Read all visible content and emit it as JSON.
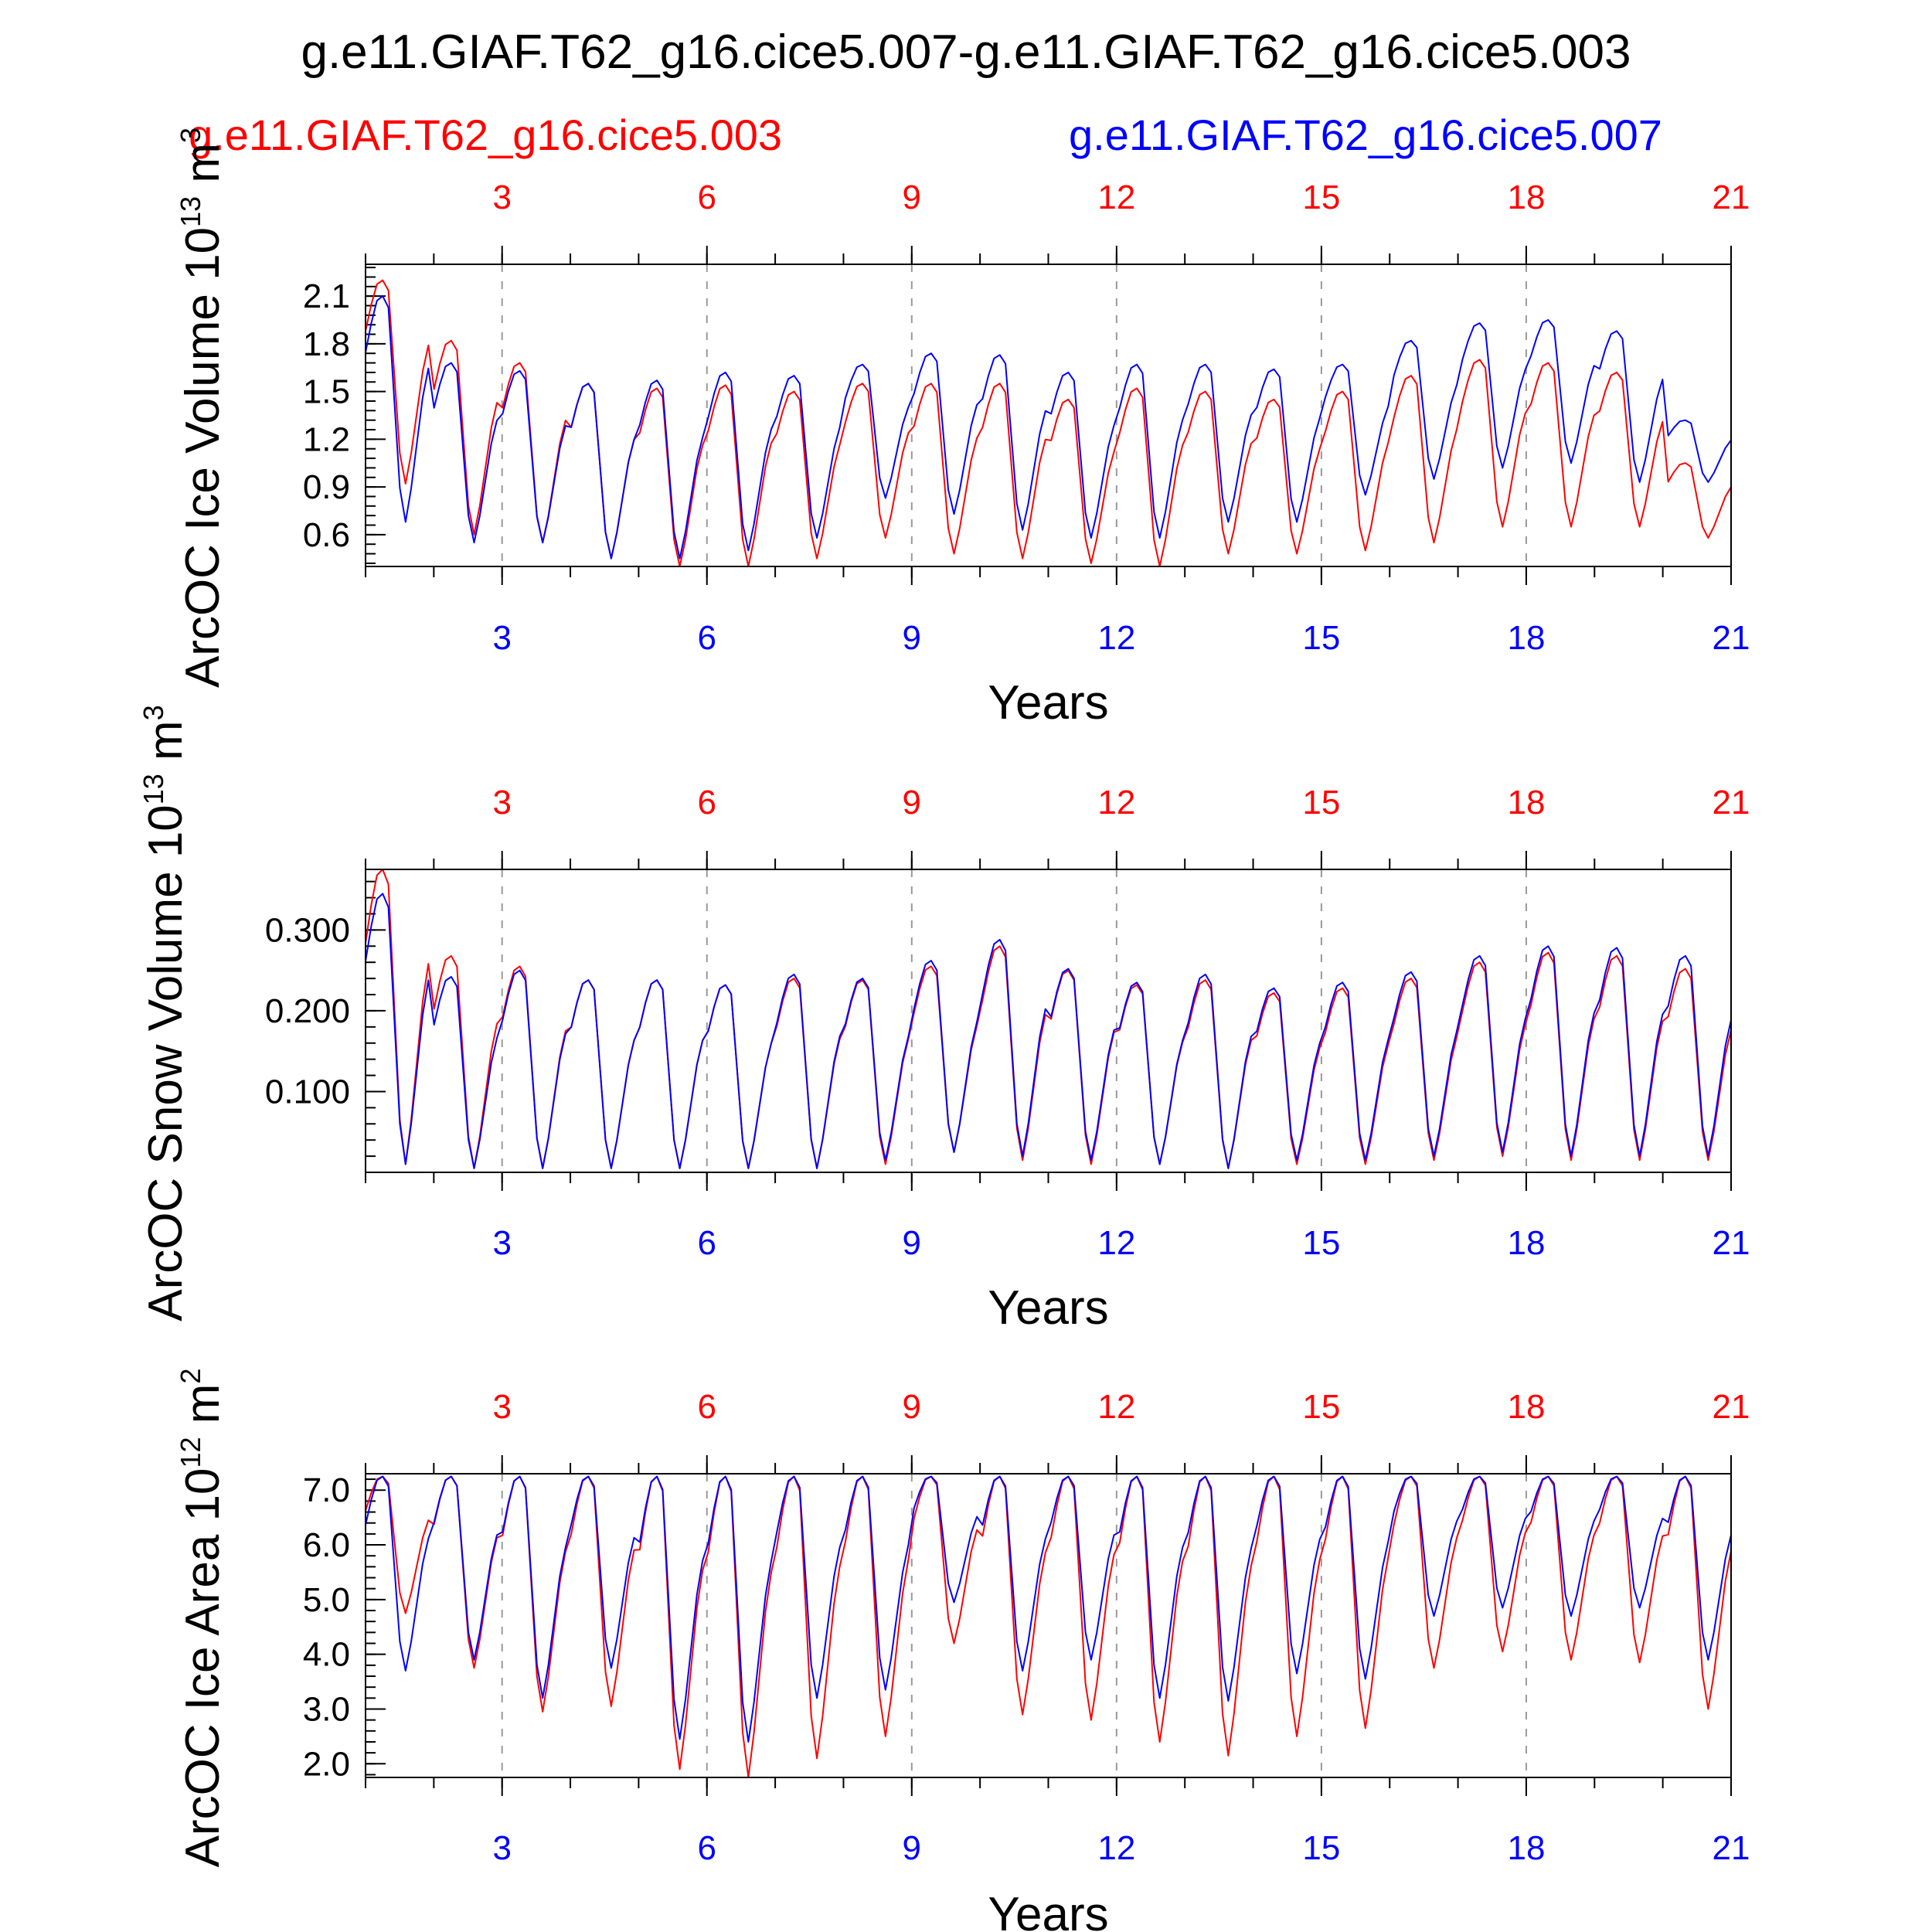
{
  "title": "g.e11.GIAF.T62_g16.cice5.007-g.e11.GIAF.T62_g16.cice5.003",
  "legend": {
    "red_label": "g.e11.GIAF.T62_g16.cice5.003",
    "blue_label": "g.e11.GIAF.T62_g16.cice5.007"
  },
  "colors": {
    "red": "#ff0000",
    "blue": "#0000ff",
    "black": "#000000",
    "grid": "#999999"
  },
  "chart_data": [
    {
      "type": "line",
      "ylabel": "ArcOC Ice Volume 10^13 m^3",
      "ylabel_base": "ArcOC Ice Volume 10",
      "ylabel_exp": "13",
      "ylabel_unit": " m",
      "ylabel_unit_exp": "3",
      "xlabel": "Years",
      "xlim": [
        1,
        21
      ],
      "ylim": [
        0.4,
        2.3
      ],
      "x_ticks": [
        "3",
        "6",
        "9",
        "12",
        "15",
        "18",
        "21"
      ],
      "y_ticks": [
        "0.6",
        "0.9",
        "1.2",
        "1.5",
        "1.8",
        "2.1"
      ],
      "grid": "vertical dashed at x ticks",
      "series": [
        {
          "name": "g.e11.GIAF.T62_g16.cice5.003",
          "color": "#ff0000",
          "yearly": [
            {
              "min": 0.92,
              "max": 2.2
            },
            {
              "min": 0.6,
              "max": 1.82
            },
            {
              "min": 0.55,
              "max": 1.68
            },
            {
              "min": 0.45,
              "max": 1.55
            },
            {
              "min": 0.4,
              "max": 1.52
            },
            {
              "min": 0.4,
              "max": 1.54
            },
            {
              "min": 0.45,
              "max": 1.5
            },
            {
              "min": 0.58,
              "max": 1.55
            },
            {
              "min": 0.48,
              "max": 1.55
            },
            {
              "min": 0.45,
              "max": 1.55
            },
            {
              "min": 0.42,
              "max": 1.45
            },
            {
              "min": 0.4,
              "max": 1.52
            },
            {
              "min": 0.48,
              "max": 1.5
            },
            {
              "min": 0.48,
              "max": 1.45
            },
            {
              "min": 0.5,
              "max": 1.5
            },
            {
              "min": 0.55,
              "max": 1.6
            },
            {
              "min": 0.65,
              "max": 1.7
            },
            {
              "min": 0.65,
              "max": 1.68
            },
            {
              "min": 0.65,
              "max": 1.62
            },
            {
              "min": 0.58,
              "max": 1.05
            }
          ]
        },
        {
          "name": "g.e11.GIAF.T62_g16.cice5.007",
          "color": "#0000ff",
          "yearly": [
            {
              "min": 0.68,
              "max": 2.1
            },
            {
              "min": 0.55,
              "max": 1.68
            },
            {
              "min": 0.55,
              "max": 1.63
            },
            {
              "min": 0.45,
              "max": 1.55
            },
            {
              "min": 0.45,
              "max": 1.57
            },
            {
              "min": 0.5,
              "max": 1.62
            },
            {
              "min": 0.58,
              "max": 1.6
            },
            {
              "min": 0.83,
              "max": 1.67
            },
            {
              "min": 0.73,
              "max": 1.74
            },
            {
              "min": 0.63,
              "max": 1.73
            },
            {
              "min": 0.58,
              "max": 1.62
            },
            {
              "min": 0.58,
              "max": 1.67
            },
            {
              "min": 0.68,
              "max": 1.67
            },
            {
              "min": 0.68,
              "max": 1.64
            },
            {
              "min": 0.85,
              "max": 1.67
            },
            {
              "min": 0.95,
              "max": 1.82
            },
            {
              "min": 1.02,
              "max": 1.93
            },
            {
              "min": 1.05,
              "max": 1.95
            },
            {
              "min": 0.93,
              "max": 1.88
            },
            {
              "min": 0.93,
              "max": 1.32
            }
          ]
        }
      ]
    },
    {
      "type": "line",
      "ylabel": "ArcOC Snow Volume 10^13 m^3",
      "ylabel_base": "ArcOC Snow Volume 10",
      "ylabel_exp": "13",
      "ylabel_unit": " m",
      "ylabel_unit_exp": "3",
      "xlabel": "Years",
      "xlim": [
        1,
        21
      ],
      "ylim": [
        0.0,
        0.375
      ],
      "x_ticks": [
        "3",
        "6",
        "9",
        "12",
        "15",
        "18",
        "21"
      ],
      "y_ticks": [
        "0.100",
        "0.200",
        "0.300"
      ],
      "grid": "vertical dashed at x ticks",
      "series": [
        {
          "name": "g.e11.GIAF.T62_g16.cice5.003",
          "color": "#ff0000",
          "yearly": [
            {
              "min": 0.01,
              "max": 0.375
            },
            {
              "min": 0.005,
              "max": 0.268
            },
            {
              "min": 0.005,
              "max": 0.255
            },
            {
              "min": 0.005,
              "max": 0.238
            },
            {
              "min": 0.005,
              "max": 0.238
            },
            {
              "min": 0.005,
              "max": 0.232
            },
            {
              "min": 0.005,
              "max": 0.24
            },
            {
              "min": 0.01,
              "max": 0.238
            },
            {
              "min": 0.025,
              "max": 0.255
            },
            {
              "min": 0.015,
              "max": 0.28
            },
            {
              "min": 0.01,
              "max": 0.25
            },
            {
              "min": 0.01,
              "max": 0.232
            },
            {
              "min": 0.005,
              "max": 0.238
            },
            {
              "min": 0.01,
              "max": 0.222
            },
            {
              "min": 0.01,
              "max": 0.228
            },
            {
              "min": 0.015,
              "max": 0.24
            },
            {
              "min": 0.02,
              "max": 0.26
            },
            {
              "min": 0.015,
              "max": 0.272
            },
            {
              "min": 0.015,
              "max": 0.268
            },
            {
              "min": 0.015,
              "max": 0.252
            }
          ]
        },
        {
          "name": "g.e11.GIAF.T62_g16.cice5.007",
          "color": "#0000ff",
          "yearly": [
            {
              "min": 0.01,
              "max": 0.345
            },
            {
              "min": 0.005,
              "max": 0.242
            },
            {
              "min": 0.005,
              "max": 0.25
            },
            {
              "min": 0.005,
              "max": 0.238
            },
            {
              "min": 0.005,
              "max": 0.238
            },
            {
              "min": 0.005,
              "max": 0.232
            },
            {
              "min": 0.005,
              "max": 0.245
            },
            {
              "min": 0.015,
              "max": 0.24
            },
            {
              "min": 0.025,
              "max": 0.262
            },
            {
              "min": 0.02,
              "max": 0.288
            },
            {
              "min": 0.015,
              "max": 0.252
            },
            {
              "min": 0.01,
              "max": 0.235
            },
            {
              "min": 0.005,
              "max": 0.245
            },
            {
              "min": 0.015,
              "max": 0.228
            },
            {
              "min": 0.015,
              "max": 0.235
            },
            {
              "min": 0.02,
              "max": 0.248
            },
            {
              "min": 0.025,
              "max": 0.268
            },
            {
              "min": 0.02,
              "max": 0.28
            },
            {
              "min": 0.02,
              "max": 0.278
            },
            {
              "min": 0.02,
              "max": 0.268
            }
          ]
        }
      ]
    },
    {
      "type": "line",
      "ylabel": "ArcOC Ice Area 10^12 m^2",
      "ylabel_base": "ArcOC Ice Area 10",
      "ylabel_exp": "12",
      "ylabel_unit": " m",
      "ylabel_unit_exp": "2",
      "xlabel": "Years",
      "xlim": [
        1,
        21
      ],
      "ylim": [
        1.75,
        7.3
      ],
      "x_ticks": [
        "3",
        "6",
        "9",
        "12",
        "15",
        "18",
        "21"
      ],
      "y_ticks": [
        "2.0",
        "3.0",
        "4.0",
        "5.0",
        "6.0",
        "7.0"
      ],
      "grid": "vertical dashed at x ticks",
      "series": [
        {
          "name": "g.e11.GIAF.T62_g16.cice5.003",
          "color": "#ff0000",
          "yearly": [
            {
              "min": 4.75,
              "max": 7.25
            },
            {
              "min": 3.75,
              "max": 7.25
            },
            {
              "min": 2.95,
              "max": 7.25
            },
            {
              "min": 3.05,
              "max": 7.25
            },
            {
              "min": 1.9,
              "max": 7.25
            },
            {
              "min": 1.75,
              "max": 7.25
            },
            {
              "min": 2.1,
              "max": 7.25
            },
            {
              "min": 2.5,
              "max": 7.25
            },
            {
              "min": 4.2,
              "max": 7.25
            },
            {
              "min": 2.9,
              "max": 7.25
            },
            {
              "min": 2.8,
              "max": 7.25
            },
            {
              "min": 2.4,
              "max": 7.25
            },
            {
              "min": 2.15,
              "max": 7.25
            },
            {
              "min": 2.5,
              "max": 7.25
            },
            {
              "min": 2.65,
              "max": 7.25
            },
            {
              "min": 3.75,
              "max": 7.25
            },
            {
              "min": 4.05,
              "max": 7.25
            },
            {
              "min": 3.9,
              "max": 7.25
            },
            {
              "min": 3.85,
              "max": 7.25
            },
            {
              "min": 3.0,
              "max": 7.25
            }
          ]
        },
        {
          "name": "g.e11.GIAF.T62_g16.cice5.007",
          "color": "#0000ff",
          "yearly": [
            {
              "min": 3.7,
              "max": 7.25
            },
            {
              "min": 3.9,
              "max": 7.25
            },
            {
              "min": 3.2,
              "max": 7.25
            },
            {
              "min": 3.75,
              "max": 7.25
            },
            {
              "min": 2.45,
              "max": 7.25
            },
            {
              "min": 2.4,
              "max": 7.25
            },
            {
              "min": 3.2,
              "max": 7.25
            },
            {
              "min": 3.35,
              "max": 7.25
            },
            {
              "min": 4.95,
              "max": 7.25
            },
            {
              "min": 3.7,
              "max": 7.25
            },
            {
              "min": 3.9,
              "max": 7.25
            },
            {
              "min": 3.2,
              "max": 7.25
            },
            {
              "min": 3.15,
              "max": 7.25
            },
            {
              "min": 3.65,
              "max": 7.25
            },
            {
              "min": 3.55,
              "max": 7.25
            },
            {
              "min": 4.7,
              "max": 7.25
            },
            {
              "min": 4.85,
              "max": 7.25
            },
            {
              "min": 4.7,
              "max": 7.25
            },
            {
              "min": 4.85,
              "max": 7.25
            },
            {
              "min": 3.9,
              "max": 7.25
            }
          ]
        }
      ]
    }
  ]
}
